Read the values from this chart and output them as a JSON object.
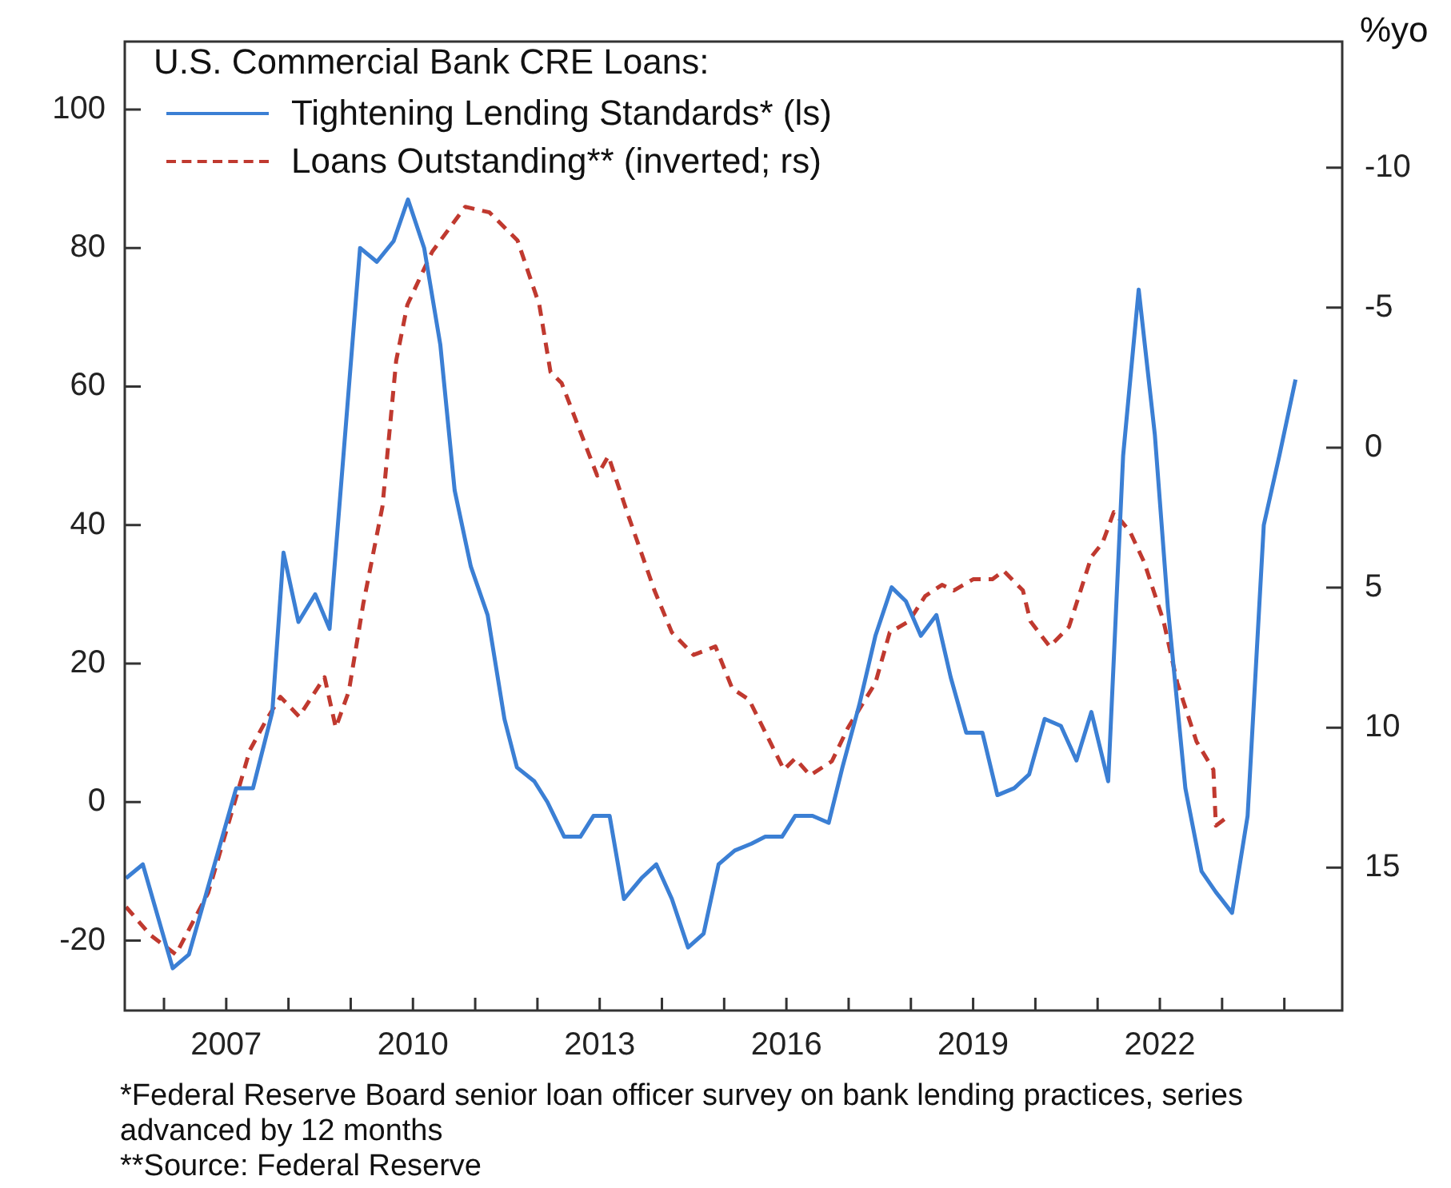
{
  "chart_data": {
    "type": "line",
    "title": "U.S. Commercial Bank CRE Loans:",
    "y2label": "%yo",
    "annotations": [
      "*Federal Reserve Board senior loan officer survey on bank lending practices, series advanced by 12 months",
      "**Source: Federal Reserve"
    ],
    "xlim": [
      2005.37,
      2024.93
    ],
    "xticks": [
      {
        "value": 2006,
        "label": null
      },
      2007,
      {
        "value": 2008,
        "label": null
      },
      {
        "value": 2009,
        "label": null
      },
      2010,
      {
        "value": 2011,
        "label": null
      },
      {
        "value": 2012,
        "label": null
      },
      2013,
      {
        "value": 2014,
        "label": null
      },
      {
        "value": 2015,
        "label": null
      },
      2016,
      {
        "value": 2017,
        "label": null
      },
      {
        "value": 2018,
        "label": null
      },
      2019,
      {
        "value": 2020,
        "label": null
      },
      {
        "value": 2021,
        "label": null
      },
      2022,
      {
        "value": 2023,
        "label": null
      },
      {
        "value": 2024,
        "label": null
      }
    ],
    "ylim": [
      -30.1,
      109.8
    ],
    "yticks": [
      -20,
      0,
      20,
      40,
      60,
      80,
      100
    ],
    "y2lim": [
      20.1,
      -14.5
    ],
    "y2ticks": [
      -10,
      -5,
      0,
      5,
      10,
      15
    ],
    "grid": false,
    "legend": "top left",
    "marker": "none",
    "series": [
      {
        "name": "Tightening Lending Standards* (ls)",
        "color": "#3b7fd4",
        "line_style": "solid",
        "x": [
          2005.39,
          2005.66,
          2006.14,
          2006.4,
          2007.16,
          2007.43,
          2007.74,
          2007.92,
          2008.16,
          2008.43,
          2008.66,
          2009.15,
          2009.42,
          2009.69,
          2009.92,
          2010.18,
          2010.44,
          2010.67,
          2010.93,
          2011.2,
          2011.47,
          2011.67,
          2011.95,
          2012.16,
          2012.43,
          2012.69,
          2012.9,
          2013.16,
          2013.39,
          2013.67,
          2013.91,
          2014.16,
          2014.42,
          2014.67,
          2014.91,
          2015.17,
          2015.44,
          2015.66,
          2015.93,
          2016.14,
          2016.42,
          2016.68,
          2016.9,
          2017.17,
          2017.43,
          2017.69,
          2017.92,
          2018.16,
          2018.41,
          2018.64,
          2018.89,
          2019.15,
          2019.39,
          2019.66,
          2019.9,
          2020.15,
          2020.41,
          2020.66,
          2020.9,
          2021.17,
          2021.41,
          2021.66,
          2021.92,
          2022.13,
          2022.41,
          2022.67,
          2022.9,
          2023.16,
          2023.41,
          2023.67,
          2023.92,
          2024.18
        ],
        "values": [
          -11,
          -9,
          -24,
          -22,
          2,
          2,
          13,
          36,
          26,
          30,
          25,
          80,
          78,
          81,
          87,
          80,
          66,
          45,
          34,
          27,
          12,
          5,
          3,
          0,
          -5,
          -5,
          -2,
          -2,
          -14,
          -11,
          -9,
          -14,
          -21,
          -19,
          -9,
          -7,
          -6,
          -5,
          -5,
          -2,
          -2,
          -3,
          5,
          14,
          24,
          31,
          29,
          24,
          27,
          18,
          10,
          10,
          1,
          2,
          4,
          12,
          11,
          6,
          13,
          3,
          50,
          74,
          53,
          28,
          2,
          -10,
          -13,
          -16,
          -2,
          40,
          50,
          61
        ]
      },
      {
        "name": "Loans Outstanding** (inverted; rs)",
        "color": "#c0392f",
        "line_style": "dashed",
        "axis": "y2",
        "x": [
          2005.39,
          2005.78,
          2006.19,
          2006.71,
          2007.38,
          2007.65,
          2007.87,
          2008.17,
          2008.58,
          2008.76,
          2008.97,
          2009.2,
          2009.51,
          2009.73,
          2009.91,
          2010.31,
          2010.84,
          2011.23,
          2011.68,
          2012.03,
          2012.21,
          2012.39,
          2012.96,
          2013.14,
          2013.44,
          2013.88,
          2014.16,
          2014.51,
          2014.86,
          2015.13,
          2015.4,
          2015.96,
          2016.14,
          2016.38,
          2016.73,
          2016.99,
          2017.43,
          2017.66,
          2017.97,
          2018.23,
          2018.5,
          2018.69,
          2019.0,
          2019.31,
          2019.49,
          2019.8,
          2019.92,
          2020.23,
          2020.54,
          2020.9,
          2021.08,
          2021.26,
          2021.52,
          2021.75,
          2022.06,
          2022.28,
          2022.59,
          2022.86,
          2022.9,
          2023.08
        ],
        "values": [
          16.4,
          17.4,
          18.1,
          15.9,
          10.8,
          9.7,
          8.9,
          9.6,
          8.2,
          10.0,
          8.7,
          5.6,
          2.1,
          -3.1,
          -5.1,
          -7.0,
          -8.6,
          -8.4,
          -7.4,
          -5.1,
          -2.7,
          -2.3,
          1.0,
          0.3,
          2.3,
          5.1,
          6.6,
          7.4,
          7.1,
          8.6,
          9.0,
          11.5,
          11.1,
          11.7,
          11.2,
          10.0,
          8.4,
          6.6,
          6.2,
          5.3,
          4.9,
          5.1,
          4.7,
          4.7,
          4.4,
          5.1,
          6.2,
          7.1,
          6.4,
          3.9,
          3.4,
          2.3,
          3.0,
          4.1,
          6.2,
          8.4,
          10.5,
          11.5,
          13.5,
          13.2
        ]
      }
    ]
  }
}
